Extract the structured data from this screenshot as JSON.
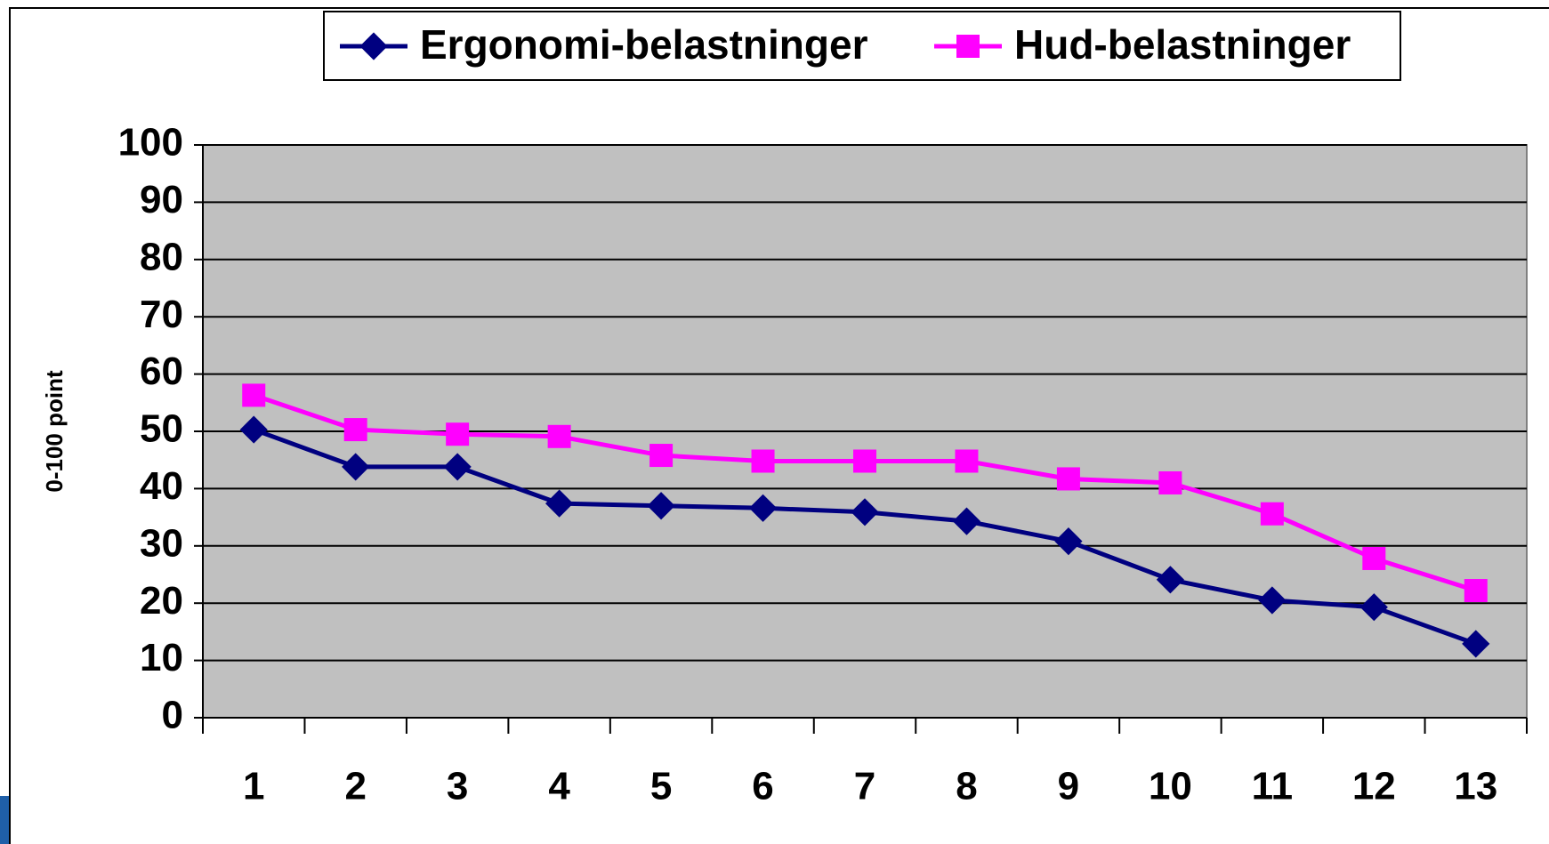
{
  "chart_data": {
    "type": "line",
    "y_label": "0-100 point",
    "categories": [
      "1",
      "2",
      "3",
      "4",
      "5",
      "6",
      "7",
      "8",
      "9",
      "10",
      "11",
      "12",
      "13"
    ],
    "series": [
      {
        "name": "Ergonomi-belastninger",
        "color": "#000080",
        "marker": "diamond",
        "values": [
          50.3,
          43.8,
          43.8,
          37.4,
          37.0,
          36.6,
          35.9,
          34.3,
          30.8,
          24.1,
          20.5,
          19.3,
          12.9
        ]
      },
      {
        "name": "Hud-belastninger",
        "color": "#ff00ff",
        "marker": "square",
        "values": [
          56.3,
          50.3,
          49.5,
          49.1,
          45.8,
          44.8,
          44.8,
          44.8,
          41.7,
          41.0,
          35.6,
          27.8,
          22.2
        ]
      }
    ],
    "ylim": [
      0,
      100
    ],
    "yticks": [
      0,
      10,
      20,
      30,
      40,
      50,
      60,
      70,
      80,
      90,
      100
    ],
    "grid": true,
    "legend": "top"
  }
}
